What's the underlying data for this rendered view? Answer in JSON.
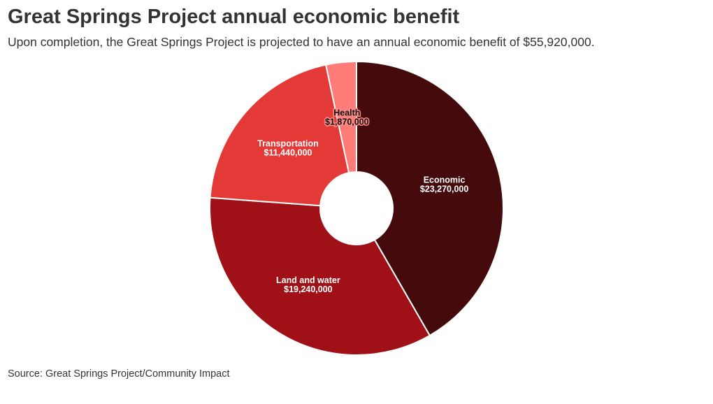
{
  "chart_data": {
    "type": "pie",
    "title": "Great Springs Project annual economic benefit",
    "subtitle": "Upon completion, the Great Springs Project is projected to have an annual economic benefit of $55,920,000.",
    "source": "Source: Great Springs Project/Community Impact",
    "slices": [
      {
        "name": "Economic",
        "value": 23270000,
        "label": "$23,270,000",
        "color": "#450a0b",
        "label_color": "#ffffff"
      },
      {
        "name": "Land and water",
        "value": 19240000,
        "label": "$19,240,000",
        "color": "#a01017",
        "label_color": "#ffffff"
      },
      {
        "name": "Transportation",
        "value": 11440000,
        "label": "$11,440,000",
        "color": "#e43a37",
        "label_color": "#ffffff"
      },
      {
        "name": "Health",
        "value": 1870000,
        "label": "$1,870,000",
        "color": "#ff7b78",
        "label_color": "#111111"
      }
    ],
    "donut": true
  }
}
